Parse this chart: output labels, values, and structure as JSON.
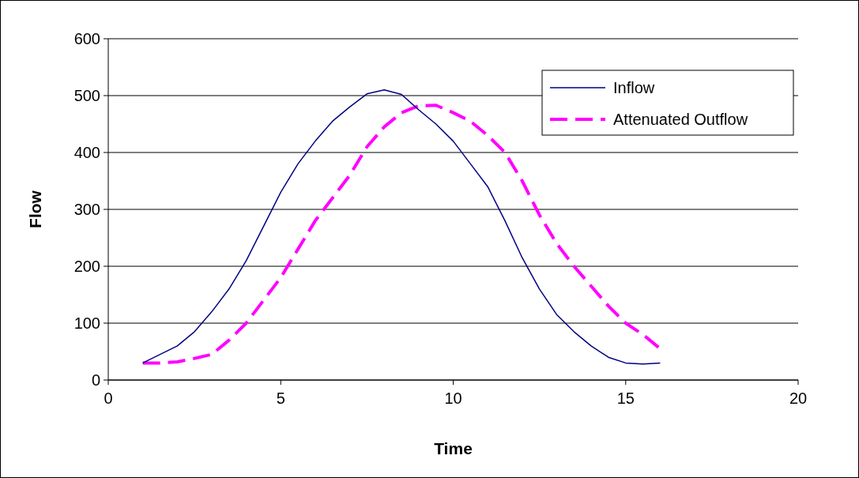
{
  "chart_data": {
    "type": "line",
    "xlabel": "Time",
    "ylabel": "Flow",
    "xlim": [
      0,
      20
    ],
    "xticks": [
      0,
      5,
      10,
      15,
      20
    ],
    "ylim": [
      0,
      600
    ],
    "yticks": [
      0,
      100,
      200,
      300,
      400,
      500,
      600
    ],
    "grid": "y",
    "legend": "top right",
    "series": [
      {
        "name": "Inflow",
        "color": "#000080",
        "line_style": "solid",
        "x": [
          1,
          1.5,
          2,
          2.5,
          3,
          3.5,
          4,
          4.5,
          5,
          5.5,
          6,
          6.5,
          7,
          7.5,
          8,
          8.5,
          9,
          9.5,
          10,
          10.5,
          11,
          11.5,
          12,
          12.5,
          13,
          13.5,
          14,
          14.5,
          15,
          15.5,
          16
        ],
        "values": [
          30,
          45,
          60,
          85,
          120,
          160,
          210,
          270,
          330,
          380,
          420,
          455,
          480,
          503,
          510,
          502,
          475,
          450,
          420,
          380,
          340,
          280,
          215,
          160,
          115,
          85,
          60,
          40,
          30,
          28,
          30
        ]
      },
      {
        "name": "Attenuated Outflow",
        "color": "#ff00ff",
        "line_style": "dashed",
        "x": [
          1,
          1.5,
          2,
          2.5,
          3,
          3.5,
          4,
          4.5,
          5,
          5.5,
          6,
          6.5,
          7,
          7.5,
          8,
          8.5,
          9,
          9.5,
          10,
          10.5,
          11,
          11.5,
          12,
          12.5,
          13,
          13.5,
          14,
          14.5,
          15,
          15.5,
          16
        ],
        "values": [
          30,
          30,
          32,
          38,
          45,
          70,
          100,
          140,
          180,
          230,
          280,
          320,
          360,
          410,
          445,
          470,
          482,
          483,
          470,
          455,
          430,
          400,
          350,
          290,
          240,
          200,
          165,
          130,
          100,
          80,
          55
        ]
      }
    ]
  }
}
